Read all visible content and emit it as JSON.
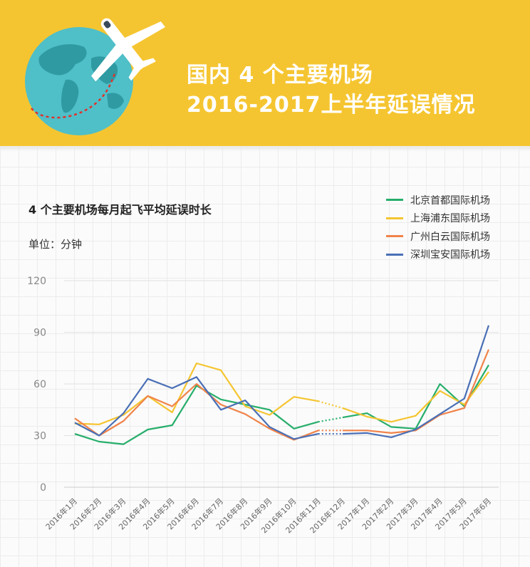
{
  "header": {
    "title_line1": "国内 4 个主要机场",
    "title_line2": "2016-2017上半年延误情况"
  },
  "chart_title": "4 个主要机场每月起飞平均延误时长",
  "unit_label": "单位：分钟",
  "colors": {
    "header_bg": "#f5c531",
    "globe": "#4fbfc8",
    "continents": "#2f9aa2",
    "flight_path": "#e0322b"
  },
  "chart_data": {
    "type": "line",
    "title": "4 个主要机场每月起飞平均延误时长",
    "ylabel": "单位：分钟",
    "ylim": [
      0,
      120
    ],
    "yticks": [
      0,
      30,
      60,
      90,
      120
    ],
    "grid": true,
    "legend_position": "top-right",
    "categories": [
      "2016年1月",
      "2016年2月",
      "2016年3月",
      "2016年4月",
      "2016年5月",
      "2016年6月",
      "2016年7月",
      "2016年8月",
      "2016年9月",
      "2016年10月",
      "2016年11月",
      "2016年12月",
      "2017年1月",
      "2017年2月",
      "2017年3月",
      "2017年4月",
      "2017年5月",
      "2017年6月"
    ],
    "missing_segment": [
      10,
      11
    ],
    "series": [
      {
        "name": "北京首都国际机场",
        "color": "#27ae6b",
        "values": [
          31,
          26.5,
          25,
          33.5,
          36,
          59,
          51,
          48,
          45,
          34,
          38,
          40.5,
          43,
          35,
          34,
          60,
          47,
          71
        ]
      },
      {
        "name": "上海浦东国际机场",
        "color": "#f5c531",
        "values": [
          37,
          36.5,
          42,
          53,
          43.5,
          72,
          68,
          47,
          42,
          52.5,
          50,
          46,
          41,
          38,
          41.5,
          56,
          48,
          67
        ]
      },
      {
        "name": "广州白云国际机场",
        "color": "#f0834a",
        "values": [
          40,
          30,
          38.5,
          53,
          47,
          60,
          48,
          42.5,
          34,
          27.5,
          33,
          33,
          33,
          31.5,
          33,
          42,
          46,
          80
        ]
      },
      {
        "name": "深圳宝安国际机场",
        "color": "#4a6fb6",
        "values": [
          37.5,
          30,
          43,
          63,
          57.5,
          64,
          45,
          50.5,
          35,
          28,
          31,
          31,
          31.5,
          29,
          33.5,
          42.5,
          51.5,
          94
        ]
      }
    ]
  }
}
